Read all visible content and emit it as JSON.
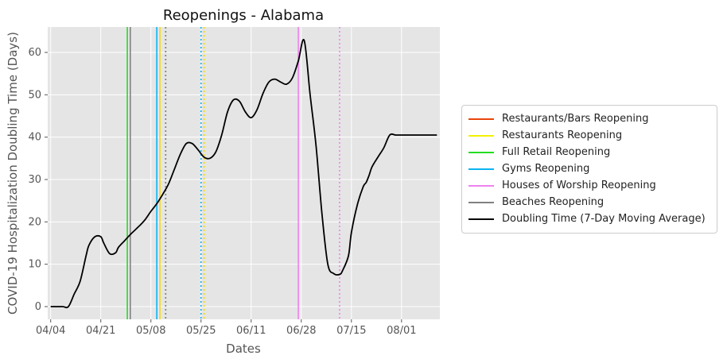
{
  "chart_data": {
    "type": "line",
    "title": "Reopenings - Alabama",
    "xlabel": "Dates",
    "ylabel": "COVID-19 Hospitalization Doubling Time (Days)",
    "x_ticks": [
      "04/04",
      "04/21",
      "05/08",
      "05/25",
      "06/11",
      "06/28",
      "07/15",
      "08/01"
    ],
    "y_ticks": [
      0,
      10,
      20,
      30,
      40,
      50,
      60
    ],
    "xlim": [
      "04/04",
      "08/14"
    ],
    "ylim": [
      -3,
      66
    ],
    "grid": true,
    "background": "#e5e5e5",
    "legend_position": "right",
    "series": [
      {
        "name": "Doubling Time (7-Day Moving Average)",
        "color": "#000000",
        "x": [
          "04/04",
          "04/08",
          "04/10",
          "04/12",
          "04/14",
          "04/16",
          "04/17",
          "04/19",
          "04/21",
          "04/22",
          "04/24",
          "04/26",
          "04/27",
          "04/29",
          "05/01",
          "05/04",
          "05/06",
          "05/08",
          "05/10",
          "05/12",
          "05/14",
          "05/16",
          "05/18",
          "05/20",
          "05/22",
          "05/24",
          "05/26",
          "05/28",
          "05/30",
          "06/01",
          "06/03",
          "06/05",
          "06/07",
          "06/09",
          "06/11",
          "06/13",
          "06/15",
          "06/17",
          "06/19",
          "06/21",
          "06/23",
          "06/25",
          "06/27",
          "06/29",
          "07/01",
          "07/03",
          "07/05",
          "07/07",
          "07/09",
          "07/11",
          "07/12",
          "07/14",
          "07/15",
          "07/17",
          "07/19",
          "07/20",
          "07/21",
          "07/22",
          "07/24",
          "07/26",
          "07/28",
          "07/30",
          "08/01",
          "08/03",
          "08/05",
          "08/07",
          "08/09",
          "08/11",
          "08/13"
        ],
        "values": [
          0,
          0,
          0,
          3,
          6,
          12,
          14.5,
          16.5,
          16.5,
          15,
          12.5,
          12.7,
          14,
          15.5,
          17,
          19,
          20.5,
          22.5,
          24.3,
          26.5,
          29,
          32.5,
          36,
          38.5,
          38.5,
          37,
          35.3,
          35,
          36.5,
          40.5,
          46,
          48.8,
          48.5,
          46,
          44.6,
          46.5,
          50.3,
          53,
          53.7,
          53,
          52.5,
          54,
          58,
          62.8,
          50,
          38,
          22,
          10,
          7.8,
          7.6,
          8.5,
          12,
          17.5,
          24,
          28.3,
          29.3,
          31,
          33,
          35.3,
          37.5,
          40.5,
          40.5,
          40.5,
          40.5,
          40.5,
          40.5,
          40.5,
          40.5,
          40.5
        ]
      }
    ],
    "vlines": [
      {
        "name": "Restaurants/Bars Reopening",
        "color": "#e8450c",
        "dates": [
          "05/11",
          "05/26"
        ],
        "styles": [
          "solid",
          "dotted"
        ]
      },
      {
        "name": "Restaurants Reopening",
        "color": "#f2f200",
        "dates": [
          "05/11",
          "05/26"
        ],
        "styles": [
          "solid",
          "dotted"
        ]
      },
      {
        "name": "Full Retail Reopening",
        "color": "#22dd22",
        "dates": [
          "04/30",
          "05/13"
        ],
        "styles": [
          "solid",
          "dotted"
        ]
      },
      {
        "name": "Gyms Reopening",
        "color": "#0ab4f0",
        "dates": [
          "05/10",
          "05/25"
        ],
        "styles": [
          "solid",
          "dotted"
        ]
      },
      {
        "name": "Houses of Worship Reopening",
        "color": "#ee82ee",
        "dates": [
          "06/27",
          "07/11"
        ],
        "styles": [
          "solid",
          "dotted"
        ]
      },
      {
        "name": "Beaches Reopening",
        "color": "#808080",
        "dates": [
          "05/01",
          "05/13"
        ],
        "styles": [
          "solid",
          "dotted"
        ]
      }
    ],
    "legend": [
      {
        "label": "Restaurants/Bars Reopening",
        "color": "#e8450c"
      },
      {
        "label": "Restaurants Reopening",
        "color": "#f2f200"
      },
      {
        "label": "Full Retail Reopening",
        "color": "#22dd22"
      },
      {
        "label": "Gyms Reopening",
        "color": "#0ab4f0"
      },
      {
        "label": "Houses of Worship Reopening",
        "color": "#ee82ee"
      },
      {
        "label": "Beaches Reopening",
        "color": "#808080"
      },
      {
        "label": "Doubling Time (7-Day Moving Average)",
        "color": "#000000"
      }
    ]
  }
}
